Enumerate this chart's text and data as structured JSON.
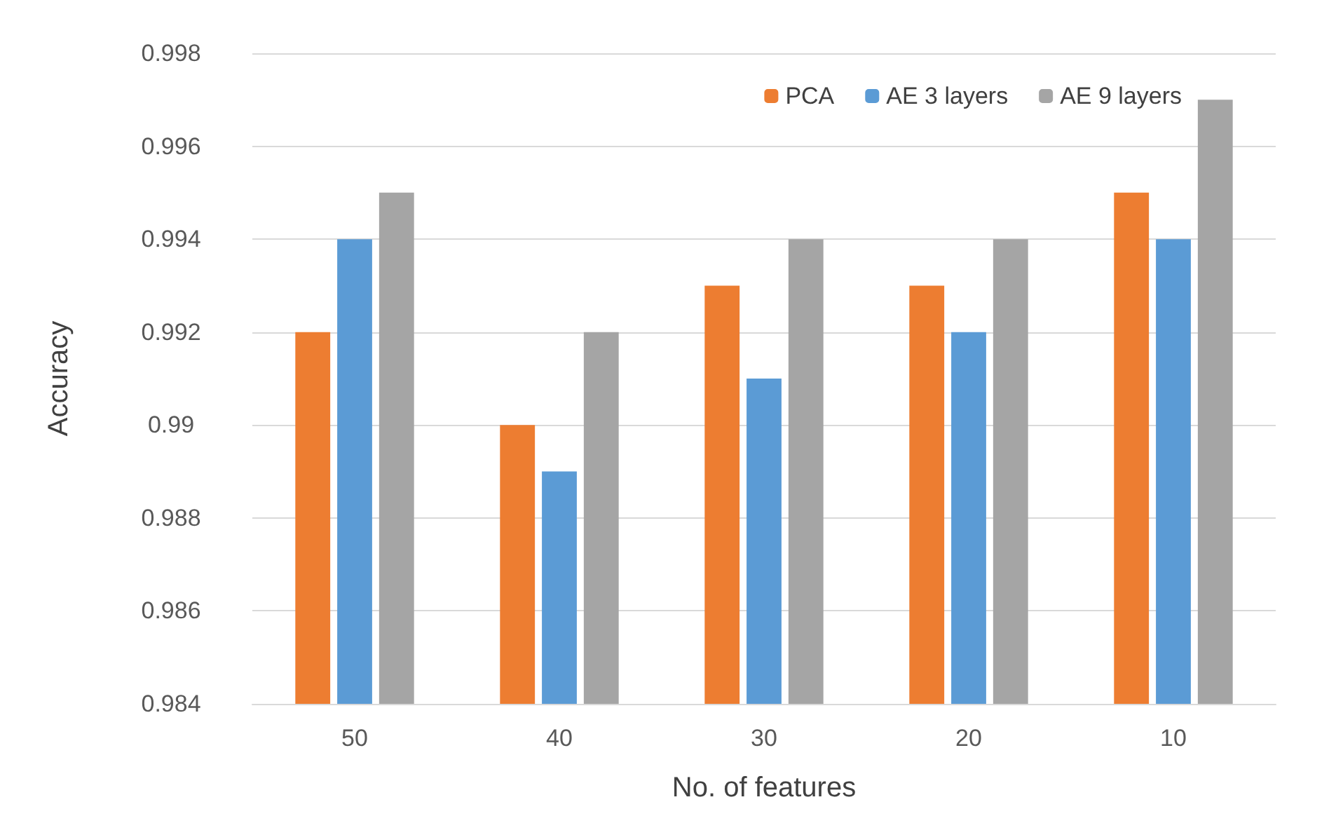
{
  "chart_data": {
    "type": "bar",
    "xlabel": "No. of features",
    "ylabel": "Accuracy",
    "categories": [
      "50",
      "40",
      "30",
      "20",
      "10"
    ],
    "series": [
      {
        "name": "PCA",
        "color": "#ed7d31",
        "values": [
          0.992,
          0.99,
          0.993,
          0.993,
          0.995
        ]
      },
      {
        "name": "AE 3 layers",
        "color": "#5b9bd5",
        "values": [
          0.994,
          0.989,
          0.991,
          0.992,
          0.994
        ]
      },
      {
        "name": "AE 9 layers",
        "color": "#a5a5a5",
        "values": [
          0.995,
          0.992,
          0.994,
          0.994,
          0.997
        ]
      }
    ],
    "ylim": [
      0.984,
      0.998
    ],
    "yticks": [
      0.984,
      0.986,
      0.988,
      0.99,
      0.992,
      0.994,
      0.996,
      0.998
    ],
    "grid": "y",
    "legend": "top right"
  }
}
